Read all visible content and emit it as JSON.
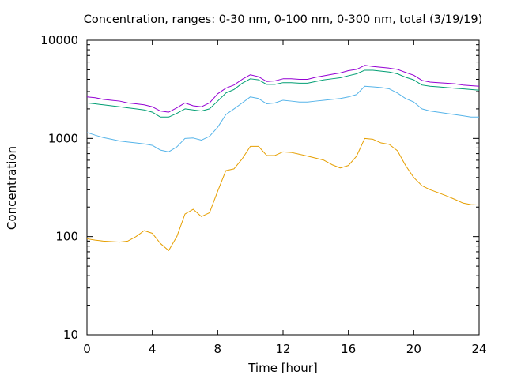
{
  "chart_data": {
    "type": "line",
    "title": "Concentration, ranges: 0-30 nm, 0-100 nm, 0-300 nm, total (3/19/19)",
    "xlabel": "Time [hour]",
    "ylabel": "Concentration",
    "xlim": [
      0,
      24
    ],
    "ylim": [
      10,
      10000
    ],
    "yscale": "log",
    "grid": false,
    "legend": "none",
    "x_ticks": [
      "0",
      "4",
      "8",
      "12",
      "16",
      "20",
      "24"
    ],
    "x_tick_values": [
      0,
      4,
      8,
      12,
      16,
      20,
      24
    ],
    "y_ticks": [
      "10",
      "100",
      "1000",
      "10000"
    ],
    "y_tick_values": [
      10,
      100,
      1000,
      10000
    ],
    "x": [
      0,
      0.5,
      1,
      1.5,
      2,
      2.5,
      3,
      3.5,
      4,
      4.5,
      5,
      5.5,
      6,
      6.5,
      7,
      7.5,
      8,
      8.5,
      9,
      9.5,
      10,
      10.5,
      11,
      11.5,
      12,
      12.5,
      13,
      13.5,
      14,
      14.5,
      15,
      15.5,
      16,
      16.5,
      17,
      17.5,
      18,
      18.5,
      19,
      19.5,
      20,
      20.5,
      21,
      21.5,
      22,
      22.5,
      23,
      23.5,
      24
    ],
    "series": [
      {
        "color": "#e69f00",
        "values": [
          95,
          92,
          90,
          89,
          88,
          90,
          100,
          115,
          108,
          85,
          72,
          100,
          170,
          190,
          160,
          175,
          290,
          470,
          490,
          620,
          830,
          830,
          670,
          670,
          730,
          720,
          690,
          660,
          630,
          600,
          540,
          500,
          530,
          660,
          1000,
          980,
          900,
          870,
          750,
          530,
          400,
          330,
          300,
          280,
          260,
          240,
          220,
          212,
          210
        ]
      },
      {
        "color": "#56b4e9",
        "values": [
          1150,
          1080,
          1020,
          980,
          940,
          920,
          900,
          880,
          850,
          760,
          730,
          820,
          1000,
          1010,
          960,
          1050,
          1300,
          1750,
          2000,
          2300,
          2650,
          2550,
          2250,
          2300,
          2450,
          2400,
          2350,
          2350,
          2400,
          2450,
          2500,
          2550,
          2650,
          2800,
          3400,
          3350,
          3300,
          3200,
          2900,
          2550,
          2350,
          2000,
          1900,
          1850,
          1800,
          1750,
          1700,
          1650,
          1650
        ]
      },
      {
        "color": "#009e73",
        "values": [
          2300,
          2250,
          2200,
          2150,
          2100,
          2050,
          2000,
          1950,
          1850,
          1650,
          1650,
          1800,
          2000,
          1950,
          1900,
          2000,
          2400,
          2900,
          3150,
          3650,
          4050,
          3950,
          3550,
          3550,
          3700,
          3700,
          3650,
          3650,
          3800,
          3950,
          4050,
          4150,
          4350,
          4550,
          4950,
          4950,
          4850,
          4750,
          4550,
          4200,
          3950,
          3500,
          3400,
          3350,
          3300,
          3250,
          3200,
          3150,
          3100
        ]
      },
      {
        "color": "#9400d3",
        "values": [
          2650,
          2600,
          2500,
          2450,
          2400,
          2300,
          2250,
          2200,
          2100,
          1900,
          1850,
          2050,
          2300,
          2150,
          2100,
          2300,
          2850,
          3250,
          3500,
          4000,
          4450,
          4250,
          3800,
          3850,
          4050,
          4050,
          4000,
          4000,
          4200,
          4350,
          4500,
          4650,
          4900,
          5050,
          5550,
          5400,
          5300,
          5200,
          5050,
          4700,
          4400,
          3900,
          3750,
          3700,
          3650,
          3600,
          3500,
          3450,
          3400
        ]
      }
    ]
  }
}
